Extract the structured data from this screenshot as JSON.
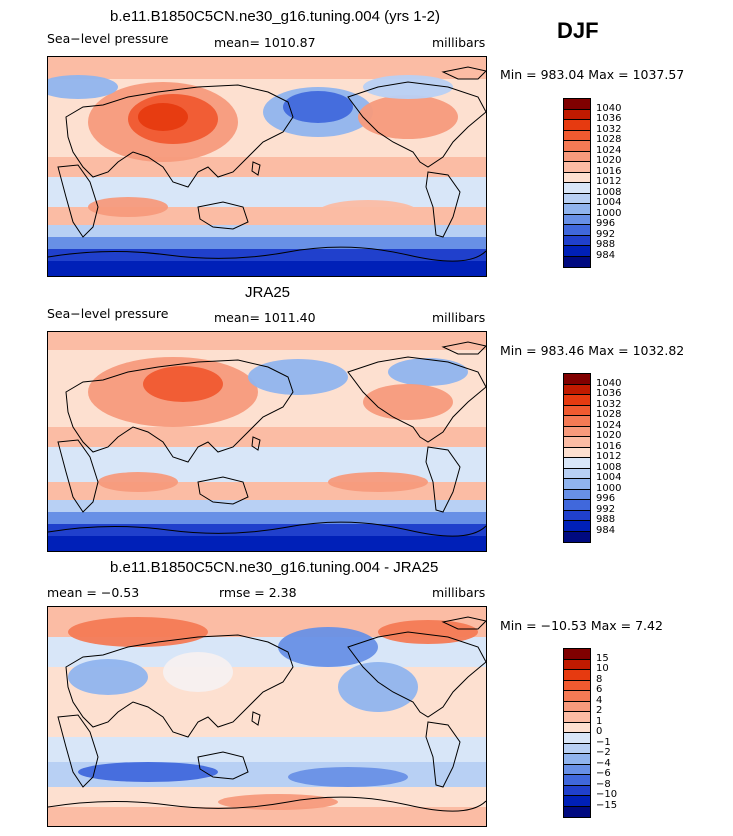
{
  "season": "DJF",
  "panels": [
    {
      "title": "b.e11.B1850C5CN.ne30_g16.tuning.004 (yrs 1-2)",
      "left": "Sea−level pressure",
      "center": "mean= 1010.87",
      "right": "millibars",
      "minmax": "Min = 983.04 Max = 1037.57",
      "scale": "abs"
    },
    {
      "title": "JRA25",
      "left": "Sea−level pressure",
      "center": "mean= 1011.40",
      "right": "millibars",
      "minmax": "Min = 983.46 Max = 1032.82",
      "scale": "abs"
    },
    {
      "title": "b.e11.B1850C5CN.ne30_g16.tuning.004 - JRA25",
      "left": "mean =   −0.53",
      "center": "rmse =    2.38",
      "right": "millibars",
      "minmax": "Min = −10.53 Max =    7.42",
      "scale": "diff"
    }
  ],
  "colorbars": {
    "abs": {
      "labels": [
        "1040",
        "1036",
        "1032",
        "1028",
        "1024",
        "1020",
        "1016",
        "1012",
        "1008",
        "1004",
        "1000",
        "996",
        "992",
        "988",
        "984"
      ],
      "colors": [
        "#800000",
        "#c01a00",
        "#e63a10",
        "#f05a30",
        "#f47a55",
        "#f79a7c",
        "#fbbca4",
        "#fde0d0",
        "#d8e6f8",
        "#b8d0f4",
        "#90b4ee",
        "#6890e6",
        "#4068dc",
        "#2040cc",
        "#0020b8",
        "#000a80"
      ]
    },
    "diff": {
      "labels": [
        "15",
        "10",
        "8",
        "6",
        "4",
        "2",
        "1",
        "0",
        "−1",
        "−2",
        "−4",
        "−6",
        "−8",
        "−10",
        "−15"
      ],
      "colors": [
        "#800000",
        "#c01a00",
        "#e63a10",
        "#f05a30",
        "#f47a55",
        "#f79a7c",
        "#fbbca4",
        "#fde0d0",
        "#d8e6f8",
        "#b8d0f4",
        "#90b4ee",
        "#6890e6",
        "#4068dc",
        "#2040cc",
        "#0020b8",
        "#000a80"
      ]
    }
  }
}
